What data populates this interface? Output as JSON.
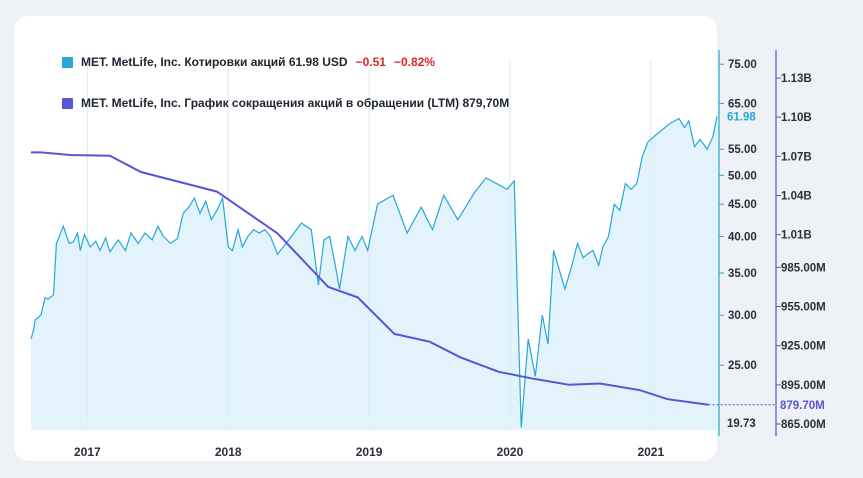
{
  "colors": {
    "price": "#25a7d8",
    "price_fill": "#e3f3fb",
    "shares": "#5656d6",
    "negative": "#e0271f",
    "card": "#ffffff",
    "page": "#eef1f5"
  },
  "legend": {
    "price_label": "MET. MetLife, Inc. Котировки акций 61.98 USD",
    "price_change": "−0.51",
    "price_change_pct": "−0.82%",
    "shares_label": "MET. MetLife, Inc. График сокращения акций в обращении (LTM) 879,70M"
  },
  "chart_data": {
    "type": "line",
    "x_range": [
      2016.6,
      2021.47
    ],
    "x_ticks": [
      "2017",
      "2018",
      "2019",
      "2020",
      "2021"
    ],
    "x_tick_values": [
      2017,
      2018,
      2019,
      2020,
      2021
    ],
    "series": [
      {
        "name": "MET. MetLife, Inc. Котировки акций",
        "axis": "left",
        "unit": "USD",
        "last_value": 61.98,
        "last_label": "61.98",
        "min_label": "19.73",
        "ticks": [
          "75.00",
          "65.00",
          "55.00",
          "50.00",
          "45.00",
          "40.00",
          "35.00",
          "30.00",
          "25.00"
        ],
        "tick_values": [
          75,
          65,
          55,
          50,
          45,
          40,
          35,
          30,
          25
        ],
        "axis_min": 19.73,
        "axis_max": 79,
        "points": [
          [
            2016.6,
            27.5
          ],
          [
            2016.62,
            28.5
          ],
          [
            2016.63,
            29.5
          ],
          [
            2016.67,
            30.0
          ],
          [
            2016.7,
            32.0
          ],
          [
            2016.72,
            31.8
          ],
          [
            2016.76,
            32.3
          ],
          [
            2016.78,
            39.0
          ],
          [
            2016.83,
            41.5
          ],
          [
            2016.87,
            39.0
          ],
          [
            2016.9,
            39.2
          ],
          [
            2016.93,
            40.5
          ],
          [
            2016.95,
            38.0
          ],
          [
            2016.98,
            40.3
          ],
          [
            2017.02,
            38.5
          ],
          [
            2017.06,
            39.3
          ],
          [
            2017.09,
            38.0
          ],
          [
            2017.13,
            39.8
          ],
          [
            2017.16,
            37.8
          ],
          [
            2017.22,
            39.5
          ],
          [
            2017.27,
            38.0
          ],
          [
            2017.31,
            40.5
          ],
          [
            2017.36,
            39.0
          ],
          [
            2017.41,
            40.5
          ],
          [
            2017.46,
            39.5
          ],
          [
            2017.5,
            41.5
          ],
          [
            2017.54,
            40.0
          ],
          [
            2017.59,
            39.0
          ],
          [
            2017.64,
            39.7
          ],
          [
            2017.68,
            43.5
          ],
          [
            2017.72,
            44.5
          ],
          [
            2017.76,
            46.0
          ],
          [
            2017.8,
            43.5
          ],
          [
            2017.84,
            45.5
          ],
          [
            2017.88,
            42.5
          ],
          [
            2017.92,
            44.0
          ],
          [
            2017.96,
            46.0
          ],
          [
            2018.0,
            38.5
          ],
          [
            2018.03,
            38.0
          ],
          [
            2018.07,
            41.0
          ],
          [
            2018.1,
            38.5
          ],
          [
            2018.14,
            40.0
          ],
          [
            2018.18,
            41.0
          ],
          [
            2018.22,
            40.5
          ],
          [
            2018.26,
            41.0
          ],
          [
            2018.3,
            40.0
          ],
          [
            2018.35,
            37.5
          ],
          [
            2018.43,
            39.5
          ],
          [
            2018.52,
            42.0
          ],
          [
            2018.59,
            41.0
          ],
          [
            2018.64,
            33.5
          ],
          [
            2018.68,
            39.5
          ],
          [
            2018.72,
            40.0
          ],
          [
            2018.76,
            36.0
          ],
          [
            2018.79,
            33.0
          ],
          [
            2018.85,
            40.0
          ],
          [
            2018.9,
            38.0
          ],
          [
            2018.95,
            40.0
          ],
          [
            2018.99,
            38.0
          ],
          [
            2019.06,
            45.0
          ],
          [
            2019.17,
            46.5
          ],
          [
            2019.27,
            40.5
          ],
          [
            2019.37,
            44.5
          ],
          [
            2019.45,
            41.0
          ],
          [
            2019.53,
            46.5
          ],
          [
            2019.63,
            42.5
          ],
          [
            2019.75,
            47.0
          ],
          [
            2019.83,
            49.5
          ],
          [
            2019.98,
            47.5
          ],
          [
            2020.03,
            49.0
          ],
          [
            2020.08,
            19.9
          ],
          [
            2020.13,
            27.5
          ],
          [
            2020.18,
            24.0
          ],
          [
            2020.23,
            30.0
          ],
          [
            2020.27,
            27.0
          ],
          [
            2020.31,
            38.0
          ],
          [
            2020.39,
            33.0
          ],
          [
            2020.44,
            36.0
          ],
          [
            2020.48,
            39.0
          ],
          [
            2020.52,
            37.0
          ],
          [
            2020.55,
            37.5
          ],
          [
            2020.59,
            38.0
          ],
          [
            2020.63,
            36.0
          ],
          [
            2020.66,
            38.5
          ],
          [
            2020.7,
            40.0
          ],
          [
            2020.74,
            45.0
          ],
          [
            2020.78,
            44.0
          ],
          [
            2020.82,
            48.5
          ],
          [
            2020.86,
            47.5
          ],
          [
            2020.9,
            48.5
          ],
          [
            2020.94,
            53.5
          ],
          [
            2020.98,
            56.5
          ],
          [
            2021.04,
            58.0
          ],
          [
            2021.1,
            59.5
          ],
          [
            2021.14,
            60.5
          ],
          [
            2021.2,
            61.5
          ],
          [
            2021.24,
            59.5
          ],
          [
            2021.27,
            61.0
          ],
          [
            2021.31,
            55.5
          ],
          [
            2021.35,
            57.0
          ],
          [
            2021.4,
            55.0
          ],
          [
            2021.44,
            57.5
          ],
          [
            2021.47,
            61.98
          ]
        ]
      },
      {
        "name": "MET. MetLife, Inc. График сокращения акций в обращении (LTM)",
        "axis": "right",
        "unit": "shares",
        "last_value": 879.7,
        "last_label": "879.70M",
        "ticks": [
          "1.13B",
          "1.10B",
          "1.07B",
          "1.04B",
          "1.01B",
          "985.00M",
          "955.00M",
          "925.00M",
          "895.00M",
          "865.00M"
        ],
        "tick_values": [
          1130,
          1100,
          1070,
          1040,
          1010,
          985,
          955,
          925,
          895,
          865
        ],
        "points": [
          [
            2016.6,
            1073
          ],
          [
            2016.67,
            1073
          ],
          [
            2016.88,
            1071
          ],
          [
            2017.16,
            1070.5
          ],
          [
            2017.38,
            1058
          ],
          [
            2017.92,
            1043
          ],
          [
            2018.35,
            1011
          ],
          [
            2018.71,
            970
          ],
          [
            2018.92,
            962
          ],
          [
            2019.18,
            934
          ],
          [
            2019.43,
            928
          ],
          [
            2019.65,
            916
          ],
          [
            2019.92,
            905
          ],
          [
            2020.15,
            900
          ],
          [
            2020.42,
            895
          ],
          [
            2020.64,
            896
          ],
          [
            2020.92,
            891
          ],
          [
            2021.12,
            884
          ],
          [
            2021.41,
            879.7
          ]
        ]
      }
    ]
  }
}
